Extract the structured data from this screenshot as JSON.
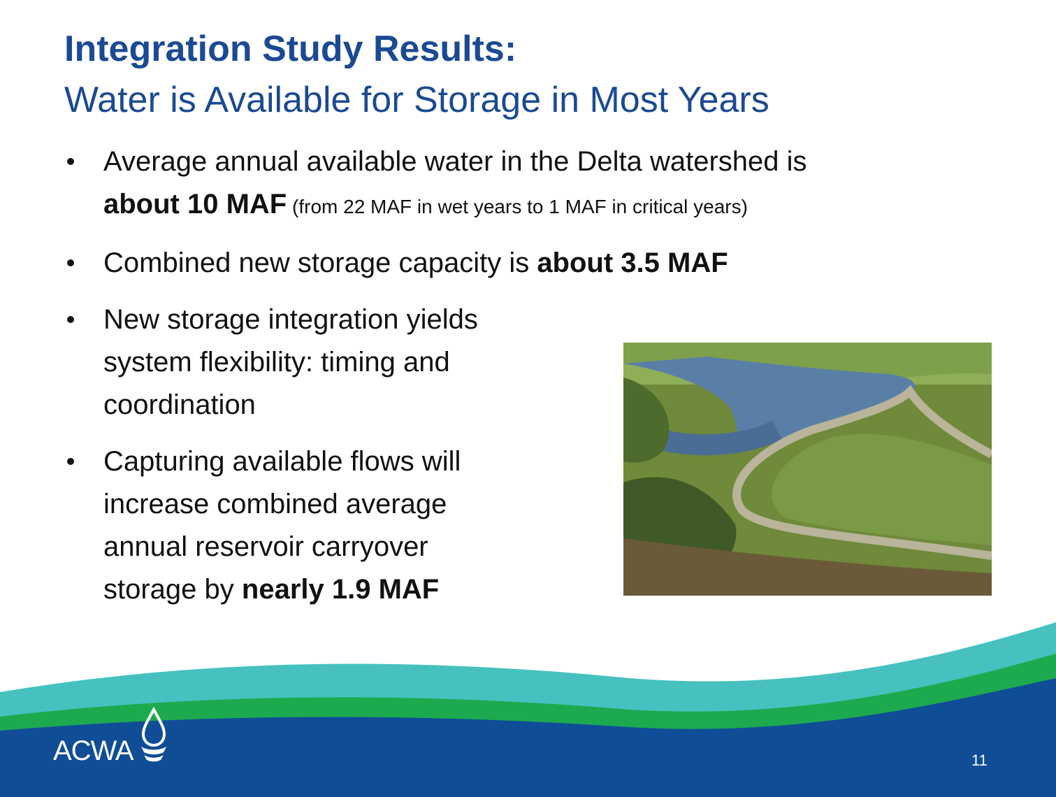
{
  "header": {
    "title": "Integration Study Results:",
    "subtitle": "Water is Available for Storage in Most Years"
  },
  "bullets": [
    {
      "lines": [
        [
          {
            "text": "Average annual available water in the Delta watershed is"
          }
        ],
        [
          {
            "bold": "about 10 MAF"
          },
          {
            "small": " (from 22 MAF in wet years to 1 MAF in critical years)"
          }
        ]
      ]
    },
    {
      "lines": [
        [
          {
            "text": "Combined new storage capacity is "
          },
          {
            "bold": "about 3.5 MAF"
          }
        ]
      ]
    },
    {
      "lines": [
        [
          {
            "text": "New storage integration yields"
          }
        ],
        [
          {
            "text": "system flexibility: timing and"
          }
        ],
        [
          {
            "text": "coordination"
          }
        ]
      ]
    },
    {
      "lines": [
        [
          {
            "text": "Capturing available flows will"
          }
        ],
        [
          {
            "text": "increase combined average"
          }
        ],
        [
          {
            "text": "annual reservoir carryover"
          }
        ],
        [
          {
            "text": "storage by "
          },
          {
            "bold": "nearly 1.9 MAF"
          }
        ]
      ]
    }
  ],
  "footer": {
    "logo": "ACWA",
    "page_number": "11"
  }
}
